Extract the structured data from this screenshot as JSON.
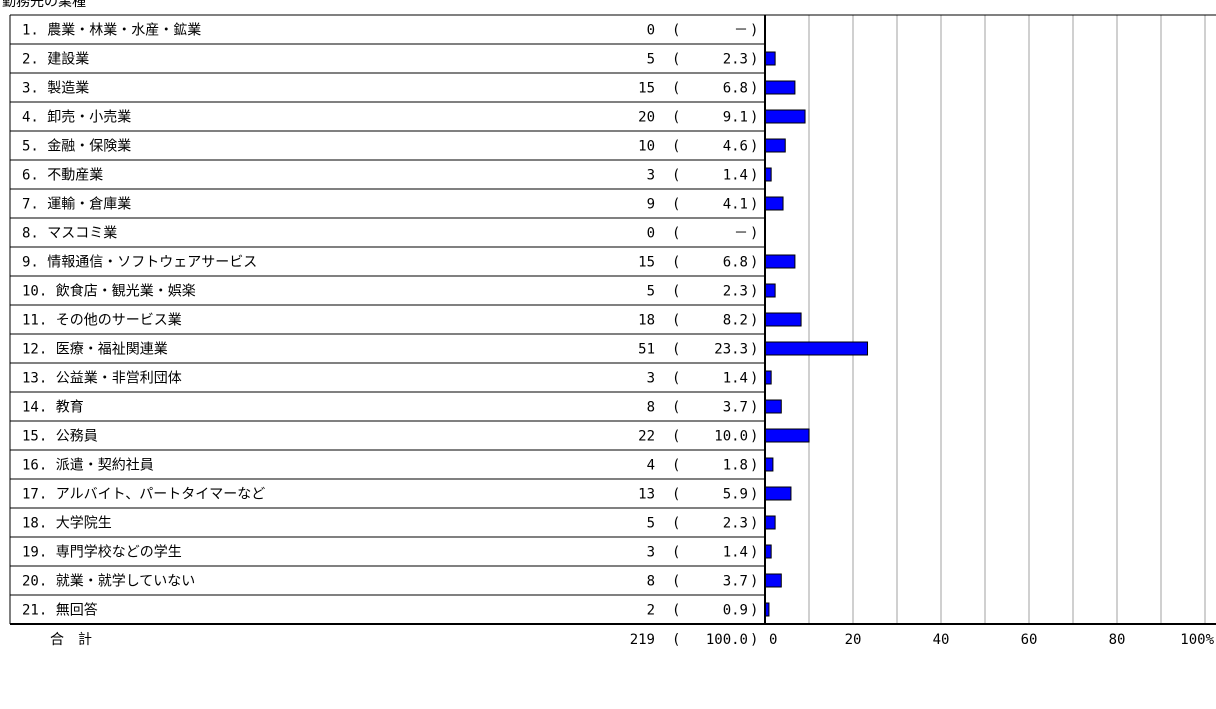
{
  "chart_data": {
    "type": "bar",
    "orientation": "horizontal",
    "title": "勤務先の業種",
    "categories": [
      "1. 農業・林業・水産・鉱業",
      "2. 建設業",
      "3. 製造業",
      "4. 卸売・小売業",
      "5. 金融・保険業",
      "6. 不動産業",
      "7. 運輸・倉庫業",
      "8. マスコミ業",
      "9. 情報通信・ソフトウェアサービス",
      "10. 飲食店・観光業・娯楽",
      "11. その他のサービス業",
      "12. 医療・福祉関連業",
      "13. 公益業・非営利団体",
      "14. 教育",
      "15. 公務員",
      "16. 派遣・契約社員",
      "17. アルバイト、パートタイマーなど",
      "18. 大学院生",
      "19. 専門学校などの学生",
      "20. 就業・就学していない",
      "21. 無回答"
    ],
    "counts": [
      0,
      5,
      15,
      20,
      10,
      3,
      9,
      0,
      15,
      5,
      18,
      51,
      3,
      8,
      22,
      4,
      13,
      5,
      3,
      8,
      2
    ],
    "percent_labels": [
      "-",
      "2.3",
      "6.8",
      "9.1",
      "4.6",
      "1.4",
      "4.1",
      "-",
      "6.8",
      "2.3",
      "8.2",
      "23.3",
      "1.4",
      "3.7",
      "10.0",
      "1.8",
      "5.9",
      "2.3",
      "1.4",
      "3.7",
      "0.9"
    ],
    "values": [
      0,
      2.3,
      6.8,
      9.1,
      4.6,
      1.4,
      4.1,
      0,
      6.8,
      2.3,
      8.2,
      23.3,
      1.4,
      3.7,
      10.0,
      1.8,
      5.9,
      2.3,
      1.4,
      3.7,
      0.9
    ],
    "total": {
      "label": "合　計",
      "count": 219,
      "percent": "100.0"
    },
    "xlim": [
      0,
      100
    ],
    "xticks": [
      0,
      20,
      40,
      60,
      80
    ],
    "xtick_last_label": "100%",
    "grid": true,
    "colors": {
      "bar": "#0000ff",
      "bar_stroke": "#000000",
      "grid": "#c0c0c0",
      "axis": "#000000"
    }
  }
}
